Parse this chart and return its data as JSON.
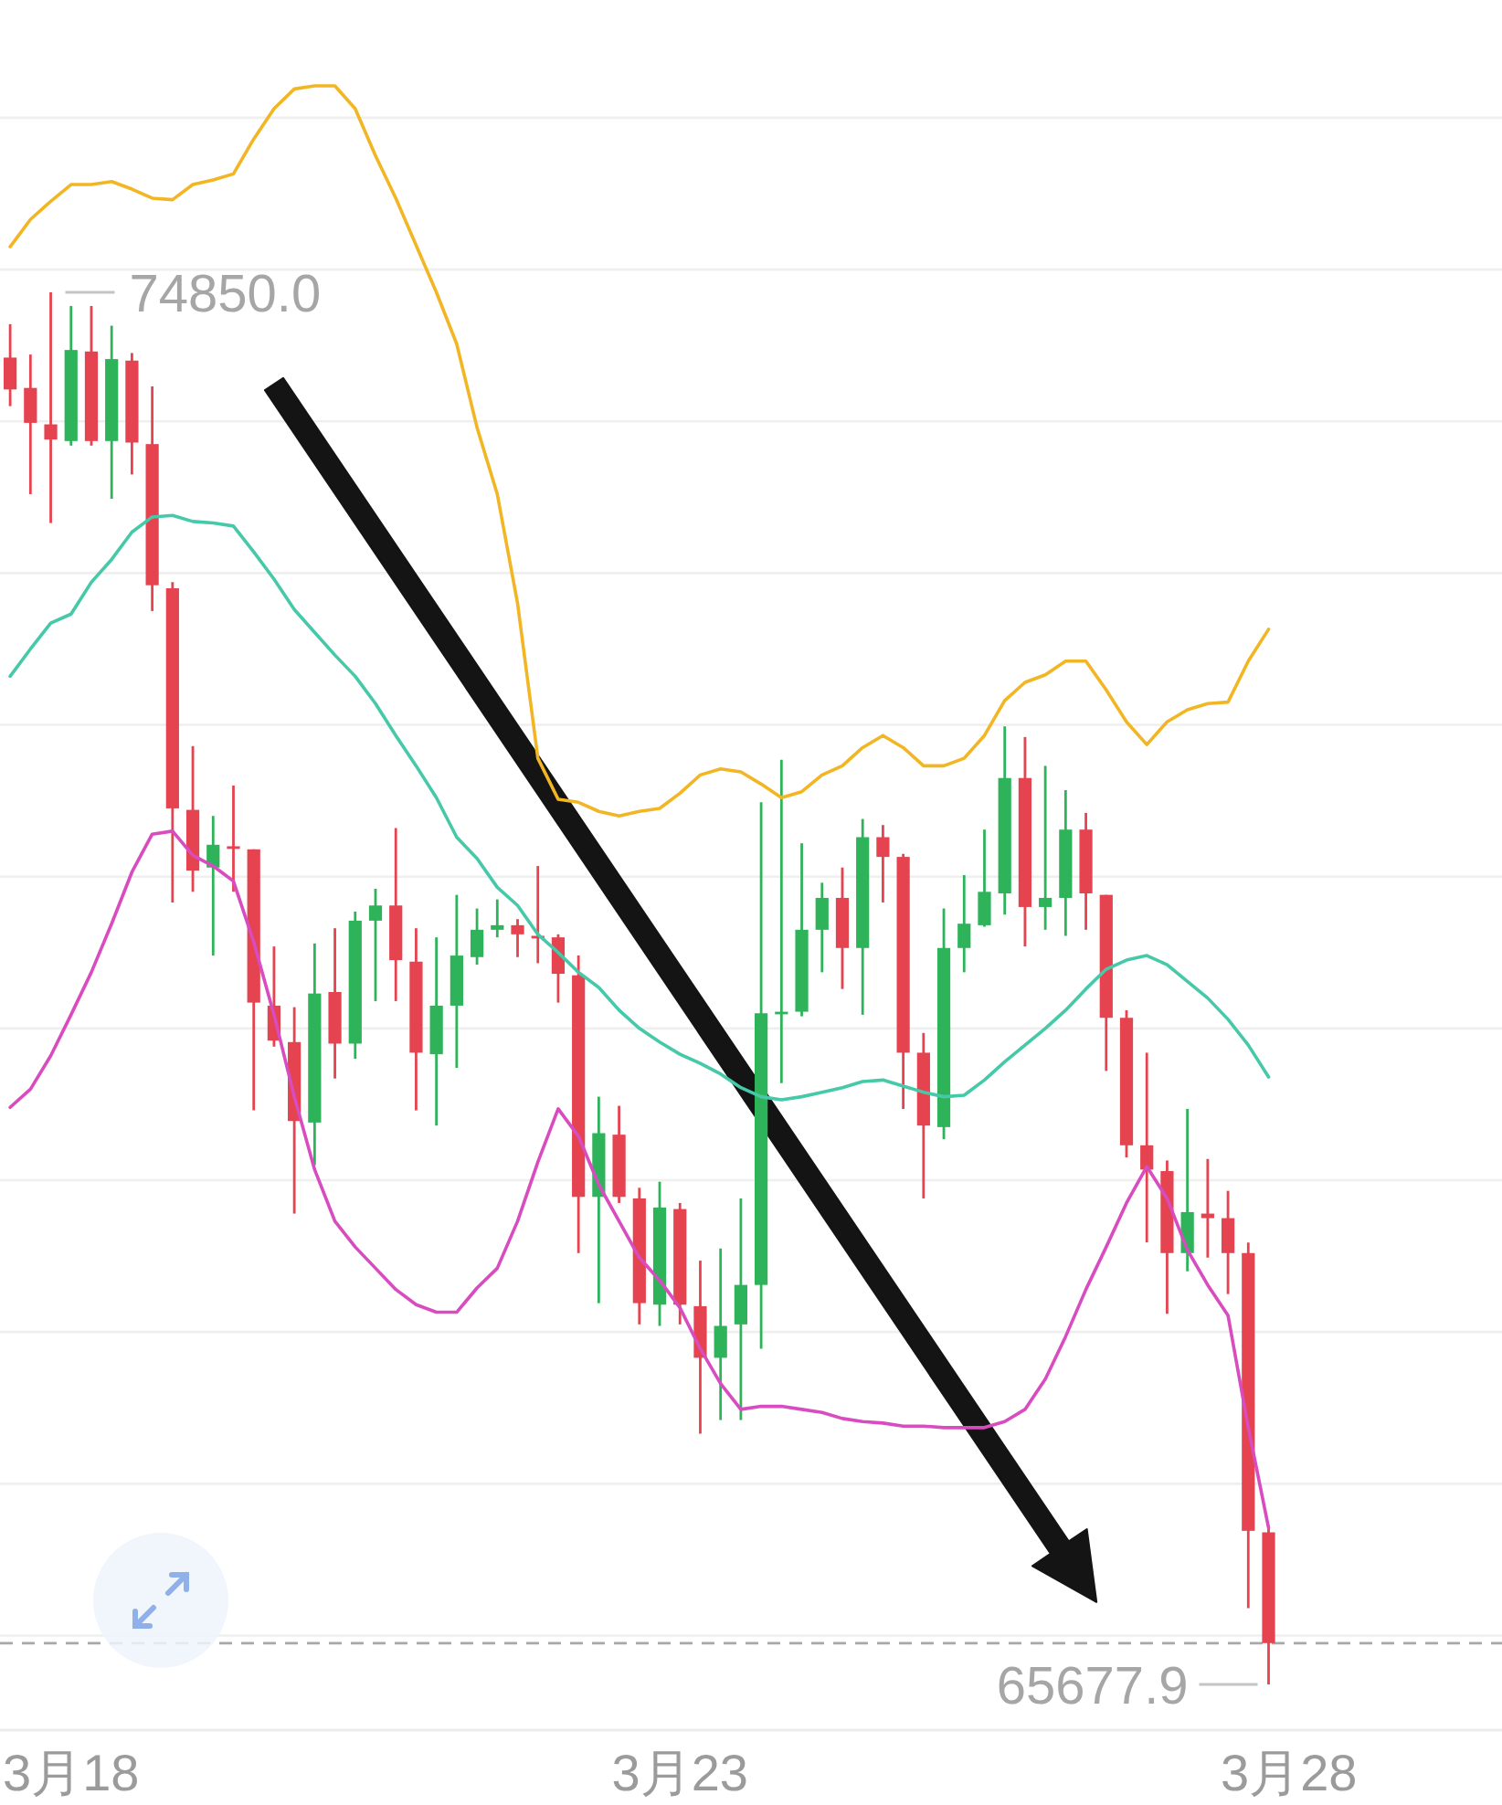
{
  "chart_data": {
    "type": "candlestick",
    "categories": [
      null,
      null,
      null,
      "3月18",
      null,
      null,
      null,
      null,
      null,
      null,
      null,
      null,
      null,
      null,
      null,
      null,
      null,
      null,
      null,
      null,
      null,
      null,
      null,
      null,
      null,
      null,
      null,
      null,
      null,
      null,
      null,
      null,
      null,
      "3月23",
      null,
      null,
      null,
      null,
      null,
      null,
      null,
      null,
      null,
      null,
      null,
      null,
      null,
      null,
      null,
      null,
      null,
      null,
      null,
      null,
      null,
      null,
      null,
      null,
      null,
      null,
      null,
      null,
      null,
      "3月28",
      null,
      null,
      null,
      null,
      null,
      null,
      null,
      null,
      null,
      null
    ],
    "ohlc": [
      [
        74420,
        74640,
        74100,
        74210
      ],
      [
        74220,
        74440,
        73520,
        73990
      ],
      [
        73980,
        74850.0,
        73330,
        73880
      ],
      [
        73870,
        74760,
        73840,
        74470
      ],
      [
        74460,
        74760,
        73840,
        73870
      ],
      [
        73870,
        74630,
        73490,
        74410
      ],
      [
        74400,
        74450,
        73650,
        73860
      ],
      [
        73850,
        74230,
        72750,
        72920
      ],
      [
        72900,
        72940,
        70830,
        71450
      ],
      [
        71440,
        71860,
        70900,
        71040
      ],
      [
        71060,
        71400,
        70480,
        71210
      ],
      [
        71200,
        71600,
        70900,
        71190
      ],
      [
        71180,
        71180,
        69460,
        70170
      ],
      [
        70150,
        70540,
        69880,
        69920
      ],
      [
        69910,
        70140,
        68780,
        69390
      ],
      [
        69380,
        70560,
        69100,
        70230
      ],
      [
        70240,
        70660,
        69670,
        69900
      ],
      [
        69900,
        70770,
        69800,
        70710
      ],
      [
        70710,
        70920,
        70180,
        70810
      ],
      [
        70810,
        71320,
        70180,
        70450
      ],
      [
        70440,
        70660,
        69460,
        69840
      ],
      [
        69830,
        70600,
        69360,
        70150
      ],
      [
        70150,
        70880,
        69740,
        70480
      ],
      [
        70470,
        70790,
        70420,
        70650
      ],
      [
        70650,
        70850,
        70600,
        70680
      ],
      [
        70680,
        70720,
        70470,
        70620
      ],
      [
        70610,
        71070,
        70430,
        70600
      ],
      [
        70600,
        70620,
        70170,
        70360
      ],
      [
        70350,
        70480,
        68520,
        68890
      ],
      [
        68890,
        69550,
        68190,
        69310
      ],
      [
        69300,
        69490,
        68850,
        68890
      ],
      [
        68880,
        68950,
        68050,
        68190
      ],
      [
        68180,
        68990,
        68040,
        68820
      ],
      [
        68810,
        68850,
        68050,
        68180
      ],
      [
        68170,
        68470,
        67330,
        67830
      ],
      [
        67830,
        68550,
        67420,
        68040
      ],
      [
        68050,
        68880,
        67420,
        68310
      ],
      [
        68310,
        71490,
        67890,
        70100
      ],
      [
        70100,
        71770,
        69640,
        70110
      ],
      [
        70110,
        71220,
        70080,
        70650
      ],
      [
        70650,
        70960,
        70370,
        70860
      ],
      [
        70860,
        71060,
        70260,
        70530
      ],
      [
        70530,
        71380,
        70090,
        71260
      ],
      [
        71260,
        71340,
        70830,
        71130
      ],
      [
        71130,
        71150,
        69470,
        69840
      ],
      [
        69840,
        69970,
        68880,
        69360
      ],
      [
        69350,
        70790,
        69270,
        70530
      ],
      [
        70530,
        71010,
        70370,
        70690
      ],
      [
        70680,
        71310,
        70670,
        70900
      ],
      [
        70890,
        71990,
        70750,
        71650
      ],
      [
        71650,
        71920,
        70540,
        70800
      ],
      [
        70800,
        71730,
        70650,
        70860
      ],
      [
        70860,
        71570,
        70610,
        71310
      ],
      [
        71310,
        71420,
        70650,
        70890
      ],
      [
        70880,
        70880,
        69720,
        70070
      ],
      [
        70070,
        70120,
        69150,
        69230
      ],
      [
        69230,
        69840,
        68590,
        69070
      ],
      [
        69060,
        69130,
        68120,
        68520
      ],
      [
        68520,
        69470,
        68400,
        68790
      ],
      [
        68780,
        69140,
        68490,
        68750
      ],
      [
        68750,
        68930,
        68250,
        68520
      ],
      [
        68520,
        68590,
        66180,
        66690
      ],
      [
        66680,
        66720,
        65677.9,
        65950
      ],
      null,
      null,
      null,
      null,
      null,
      null,
      null,
      null,
      null,
      null,
      null
    ],
    "colors": [
      "#e5434f",
      "#e5434f",
      "#e5434f",
      "#2eb35a",
      "#e5434f",
      "#2eb35a",
      "#e5434f",
      "#e5434f",
      "#e5434f",
      "#e5434f",
      "#2eb35a",
      "#e5434f",
      "#e5434f",
      "#e5434f",
      "#e5434f",
      "#2eb35a",
      "#e5434f",
      "#2eb35a",
      "#2eb35a",
      "#e5434f",
      "#e5434f",
      "#2eb35a",
      "#2eb35a",
      "#2eb35a",
      "#2eb35a",
      "#e5434f",
      "#e5434f",
      "#e5434f",
      "#e5434f",
      "#2eb35a",
      "#e5434f",
      "#e5434f",
      "#2eb35a",
      "#e5434f",
      "#e5434f",
      "#2eb35a",
      "#2eb35a",
      "#2eb35a",
      "#2eb35a",
      "#2eb35a",
      "#2eb35a",
      "#e5434f",
      "#2eb35a",
      "#e5434f",
      "#e5434f",
      "#e5434f",
      "#2eb35a",
      "#2eb35a",
      "#2eb35a",
      "#2eb35a",
      "#e5434f",
      "#2eb35a",
      "#2eb35a",
      "#e5434f",
      "#e5434f",
      "#e5434f",
      "#e5434f",
      "#e5434f",
      "#2eb35a",
      "#e5434f",
      "#e5434f",
      "#e5434f",
      "#e5434f",
      null,
      null,
      null,
      null,
      null,
      null,
      null,
      null,
      null,
      null,
      null
    ],
    "series": [
      {
        "type": "line",
        "color": "#f2b624",
        "values": [
          75150,
          75330,
          75450,
          75560,
          75560,
          75580,
          75530,
          75470,
          75460,
          75560,
          75590,
          75630,
          75860,
          76060,
          76190,
          76210,
          76210,
          76060,
          75750,
          75470,
          75160,
          74850,
          74510,
          73960,
          73520,
          72800,
          71780,
          71510,
          71490,
          71430,
          71400,
          71430,
          71450,
          71550,
          71670,
          71710,
          71690,
          71610,
          71520,
          71560,
          71670,
          71730,
          71850,
          71930,
          71850,
          71730,
          71730,
          71780,
          71930,
          72160,
          72280,
          72330,
          72420,
          72420,
          72230,
          72020,
          71870,
          72020,
          72100,
          72140,
          72150,
          72420,
          72630,
          null,
          null,
          null,
          null,
          null,
          null,
          null,
          null,
          null,
          null,
          null
        ]
      },
      {
        "type": "line",
        "color": "#45c9a9",
        "values": [
          72320,
          72500,
          72670,
          72730,
          72940,
          73090,
          73270,
          73370,
          73380,
          73340,
          73330,
          73310,
          73140,
          72960,
          72760,
          72610,
          72460,
          72320,
          72140,
          71930,
          71730,
          71520,
          71260,
          71120,
          70930,
          70810,
          70620,
          70500,
          70370,
          70270,
          70120,
          70000,
          69910,
          69830,
          69770,
          69700,
          69610,
          69550,
          69530,
          69550,
          69580,
          69610,
          69650,
          69660,
          69620,
          69580,
          69550,
          69560,
          69660,
          69780,
          69890,
          70000,
          70120,
          70260,
          70390,
          70450,
          70480,
          70420,
          70310,
          70200,
          70060,
          69890,
          69680,
          null,
          null,
          null,
          null,
          null,
          null,
          null,
          null,
          null,
          null,
          null
        ]
      },
      {
        "type": "line",
        "color": "#d84cbf",
        "values": [
          69480,
          69600,
          69820,
          70090,
          70370,
          70690,
          71030,
          71280,
          71300,
          71140,
          71070,
          70970,
          70570,
          70090,
          69550,
          69070,
          68730,
          68560,
          68420,
          68280,
          68180,
          68130,
          68130,
          68290,
          68420,
          68730,
          69120,
          69470,
          69290,
          68970,
          68730,
          68490,
          68340,
          68160,
          67890,
          67660,
          67490,
          67510,
          67510,
          67490,
          67470,
          67430,
          67410,
          67400,
          67380,
          67380,
          67370,
          67370,
          67370,
          67410,
          67490,
          67690,
          67970,
          68280,
          68560,
          68850,
          69090,
          68880,
          68540,
          68310,
          68110,
          67370,
          66710,
          null,
          null,
          null,
          null,
          null,
          null,
          null,
          null,
          null,
          null,
          null
        ]
      }
    ],
    "annotations": [
      "74850.0",
      "65677.9"
    ],
    "ref_lines": [
      {
        "axis": "y",
        "value": 65950,
        "color": "#a8a8a8",
        "line_style": "dashed"
      }
    ],
    "yticks": [
      {
        "value": 66000,
        "label": null
      },
      {
        "value": 67000,
        "label": null
      },
      {
        "value": 68000,
        "label": null
      },
      {
        "value": 69000,
        "label": null
      },
      {
        "value": 70000,
        "label": null
      },
      {
        "value": 71000,
        "label": null
      },
      {
        "value": 72000,
        "label": null
      },
      {
        "value": 73000,
        "label": null
      },
      {
        "value": 74000,
        "label": null
      },
      {
        "value": 75000,
        "label": null
      },
      {
        "value": 76000,
        "label": null
      }
    ],
    "grid": "y"
  }
}
